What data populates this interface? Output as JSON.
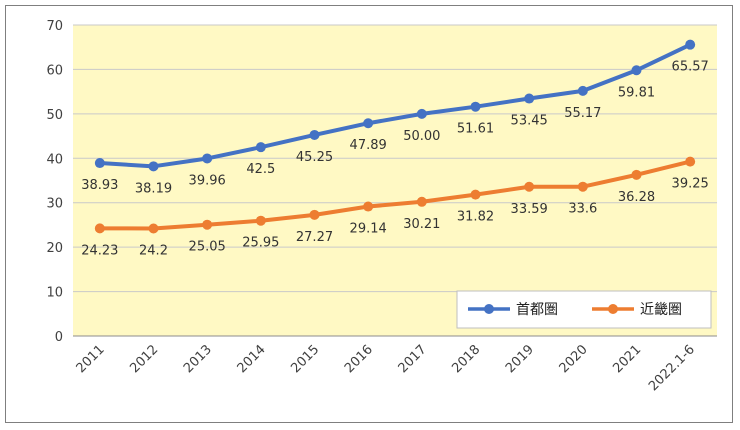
{
  "chart_data": {
    "type": "line",
    "categories": [
      "2011",
      "2012",
      "2013",
      "2014",
      "2015",
      "2016",
      "2017",
      "2018",
      "2019",
      "2020",
      "2021",
      "2022.1-6"
    ],
    "ylim": [
      0,
      70
    ],
    "yticks": [
      0,
      10,
      20,
      30,
      40,
      50,
      60,
      70
    ],
    "grid": true,
    "legend_position": "bottom-right",
    "plot_background": "#fff9c4",
    "series": [
      {
        "name": "首都圏",
        "color": "#4472c4",
        "values": [
          38.93,
          38.19,
          39.96,
          42.5,
          45.25,
          47.89,
          50.0,
          51.61,
          53.45,
          55.17,
          59.81,
          65.57
        ],
        "labels": [
          "38.93",
          "38.19",
          "39.96",
          "42.5",
          "45.25",
          "47.89",
          "50.00",
          "51.61",
          "53.45",
          "55.17",
          "59.81",
          "65.57"
        ]
      },
      {
        "name": "近畿圏",
        "color": "#ed7d31",
        "values": [
          24.23,
          24.2,
          25.05,
          25.95,
          27.27,
          29.14,
          30.21,
          31.82,
          33.59,
          33.6,
          36.28,
          39.25
        ],
        "labels": [
          "24.23",
          "24.2",
          "25.05",
          "25.95",
          "27.27",
          "29.14",
          "30.21",
          "31.82",
          "33.59",
          "33.6",
          "36.28",
          "39.25"
        ]
      }
    ]
  }
}
